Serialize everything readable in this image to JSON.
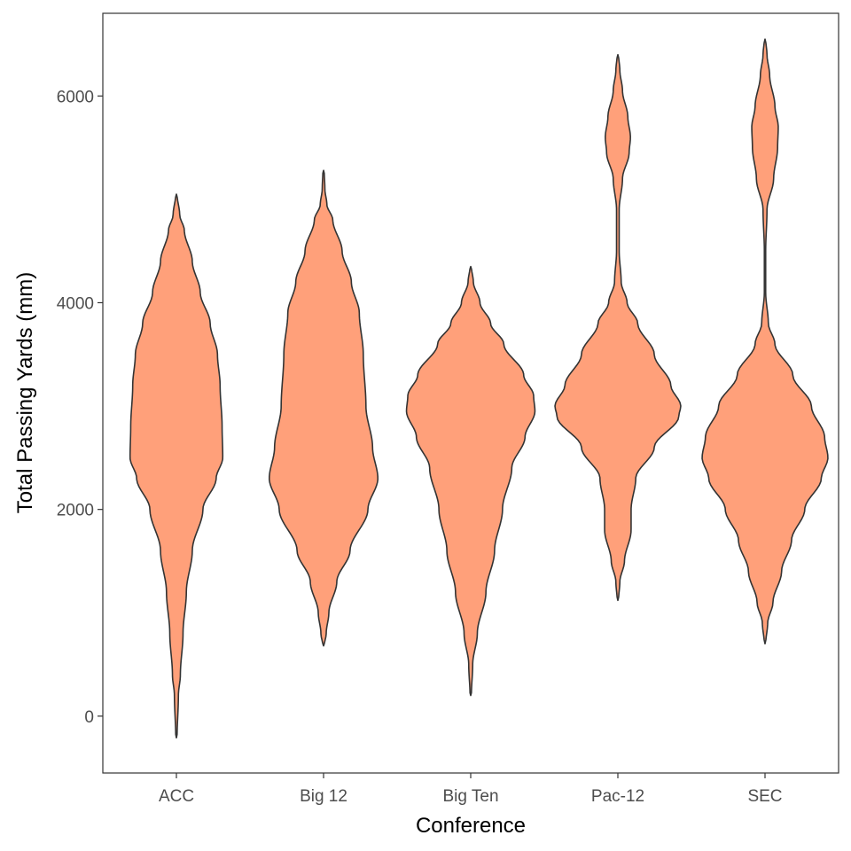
{
  "chart_data": {
    "type": "violin",
    "xlabel": "Conference",
    "ylabel": "Total Passing Yards (mm)",
    "ylim": [
      -550,
      6800
    ],
    "y_ticks": [
      0,
      2000,
      4000,
      6000
    ],
    "categories": [
      "ACC",
      "Big 12",
      "Big Ten",
      "Pac-12",
      "SEC"
    ],
    "violins": [
      {
        "category": "ACC",
        "min": -210,
        "max": 5050,
        "density": [
          [
            -210,
            0.01
          ],
          [
            200,
            0.03
          ],
          [
            400,
            0.06
          ],
          [
            800,
            0.1
          ],
          [
            1200,
            0.15
          ],
          [
            1600,
            0.24
          ],
          [
            2000,
            0.4
          ],
          [
            2300,
            0.6
          ],
          [
            2500,
            0.7
          ],
          [
            2800,
            0.69
          ],
          [
            3200,
            0.66
          ],
          [
            3500,
            0.62
          ],
          [
            3800,
            0.51
          ],
          [
            4100,
            0.36
          ],
          [
            4400,
            0.24
          ],
          [
            4700,
            0.12
          ],
          [
            4850,
            0.05
          ],
          [
            5050,
            0.01
          ]
        ]
      },
      {
        "category": "Big 12",
        "min": 680,
        "max": 5280,
        "density": [
          [
            680,
            0.01
          ],
          [
            800,
            0.04
          ],
          [
            1000,
            0.08
          ],
          [
            1300,
            0.2
          ],
          [
            1600,
            0.4
          ],
          [
            2000,
            0.67
          ],
          [
            2300,
            0.82
          ],
          [
            2600,
            0.74
          ],
          [
            3000,
            0.64
          ],
          [
            3500,
            0.6
          ],
          [
            3900,
            0.54
          ],
          [
            4200,
            0.42
          ],
          [
            4500,
            0.28
          ],
          [
            4800,
            0.14
          ],
          [
            4950,
            0.05
          ],
          [
            5100,
            0.02
          ],
          [
            5280,
            0.01
          ]
        ]
      },
      {
        "category": "Big Ten",
        "min": 200,
        "max": 4350,
        "density": [
          [
            200,
            0.01
          ],
          [
            500,
            0.03
          ],
          [
            800,
            0.1
          ],
          [
            1200,
            0.23
          ],
          [
            1600,
            0.36
          ],
          [
            2000,
            0.48
          ],
          [
            2400,
            0.62
          ],
          [
            2700,
            0.82
          ],
          [
            2950,
            0.97
          ],
          [
            3100,
            0.95
          ],
          [
            3300,
            0.8
          ],
          [
            3600,
            0.5
          ],
          [
            3800,
            0.3
          ],
          [
            4000,
            0.14
          ],
          [
            4200,
            0.04
          ],
          [
            4350,
            0.01
          ]
        ]
      },
      {
        "category": "Pac-12",
        "min": 1120,
        "max": 6400,
        "density": [
          [
            1120,
            0.01
          ],
          [
            1300,
            0.03
          ],
          [
            1500,
            0.1
          ],
          [
            1800,
            0.2
          ],
          [
            2000,
            0.2
          ],
          [
            2300,
            0.27
          ],
          [
            2600,
            0.55
          ],
          [
            2900,
            0.92
          ],
          [
            3000,
            0.95
          ],
          [
            3200,
            0.8
          ],
          [
            3500,
            0.55
          ],
          [
            3800,
            0.3
          ],
          [
            4000,
            0.14
          ],
          [
            4200,
            0.05
          ],
          [
            4500,
            0.02
          ],
          [
            4900,
            0.02
          ],
          [
            5200,
            0.07
          ],
          [
            5450,
            0.17
          ],
          [
            5600,
            0.19
          ],
          [
            5800,
            0.15
          ],
          [
            6050,
            0.07
          ],
          [
            6250,
            0.03
          ],
          [
            6400,
            0.01
          ]
        ]
      },
      {
        "category": "SEC",
        "min": 700,
        "max": 6550,
        "density": [
          [
            700,
            0.01
          ],
          [
            900,
            0.04
          ],
          [
            1100,
            0.12
          ],
          [
            1400,
            0.25
          ],
          [
            1700,
            0.4
          ],
          [
            2000,
            0.6
          ],
          [
            2300,
            0.85
          ],
          [
            2500,
            0.95
          ],
          [
            2700,
            0.9
          ],
          [
            3000,
            0.7
          ],
          [
            3300,
            0.42
          ],
          [
            3600,
            0.15
          ],
          [
            3800,
            0.05
          ],
          [
            4100,
            0.01
          ],
          [
            4500,
            0.01
          ],
          [
            4900,
            0.03
          ],
          [
            5200,
            0.13
          ],
          [
            5500,
            0.19
          ],
          [
            5700,
            0.2
          ],
          [
            5900,
            0.15
          ],
          [
            6200,
            0.07
          ],
          [
            6400,
            0.03
          ],
          [
            6550,
            0.01
          ]
        ]
      }
    ],
    "colors": {
      "fill": "#ffa07a",
      "stroke": "#333333",
      "panel_border": "#333333",
      "tick": "#333333"
    }
  }
}
